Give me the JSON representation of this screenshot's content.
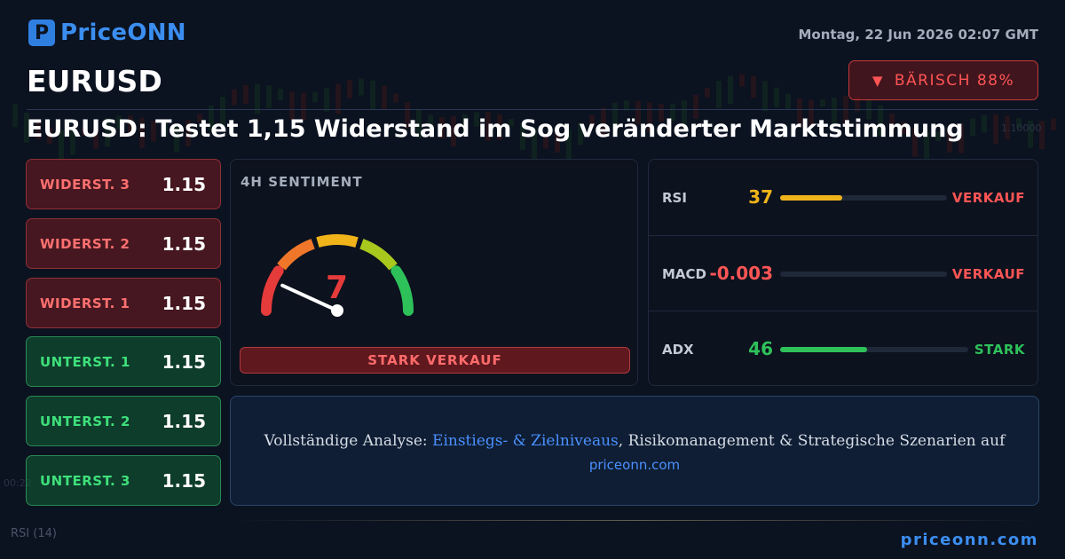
{
  "brand": {
    "logo_glyph": "P",
    "name": "PriceONN",
    "color": "#3b8ef0"
  },
  "header": {
    "date": "Montag, 22 Jun 2026 02:07 GMT",
    "symbol": "EURUSD",
    "bias_icon": "triangle-down-icon",
    "bias_glyph": "▼",
    "bias_label": "BÄRISCH 88%"
  },
  "headline": "EURUSD: Testet 1,15 Widerstand im Sog veränderter Marktstimmung",
  "levels": [
    {
      "label": "WIDERST. 3",
      "value": "1.15",
      "kind": "resistance"
    },
    {
      "label": "WIDERST. 2",
      "value": "1.15",
      "kind": "resistance"
    },
    {
      "label": "WIDERST. 1",
      "value": "1.15",
      "kind": "resistance"
    },
    {
      "label": "UNTERST. 1",
      "value": "1.15",
      "kind": "support"
    },
    {
      "label": "UNTERST. 2",
      "value": "1.15",
      "kind": "support"
    },
    {
      "label": "UNTERST. 3",
      "value": "1.15",
      "kind": "support"
    }
  ],
  "gauge": {
    "title": "4H SENTIMENT",
    "value": "7",
    "level_fraction": 0.07,
    "signal": "STARK VERKAUF",
    "colors": [
      "#e53b3b",
      "#f0772a",
      "#f0b41a",
      "#a8c81e",
      "#2ec15a"
    ]
  },
  "indicators": [
    {
      "name": "RSI",
      "value": "37",
      "fill_fraction": 0.37,
      "signal": "VERKAUF",
      "value_color": "#f0b41a",
      "fill_color": "#f0b41a",
      "signal_color": "#ff5555"
    },
    {
      "name": "MACD",
      "value": "-0.003",
      "fill_fraction": 0.0,
      "signal": "VERKAUF",
      "value_color": "#ff5555",
      "fill_color": "#ff5555",
      "signal_color": "#ff5555"
    },
    {
      "name": "ADX",
      "value": "46",
      "fill_fraction": 0.46,
      "signal": "STARK",
      "value_color": "#2ec15a",
      "fill_color": "#2ec15a",
      "signal_color": "#2ec15a"
    }
  ],
  "promo": {
    "prefix": "Vollständige Analyse: ",
    "highlight": "Einstiegs- & Zielniveaus",
    "suffix": ", Risikomanagement & Strategische Szenarien auf",
    "url": "priceonn.com"
  },
  "footer": {
    "rsi_label": "RSI",
    "rsi_period": "(14)",
    "url": "priceonn.com"
  },
  "background_chart": {
    "axis_labels": [
      "1.10000",
      "00:22"
    ]
  }
}
